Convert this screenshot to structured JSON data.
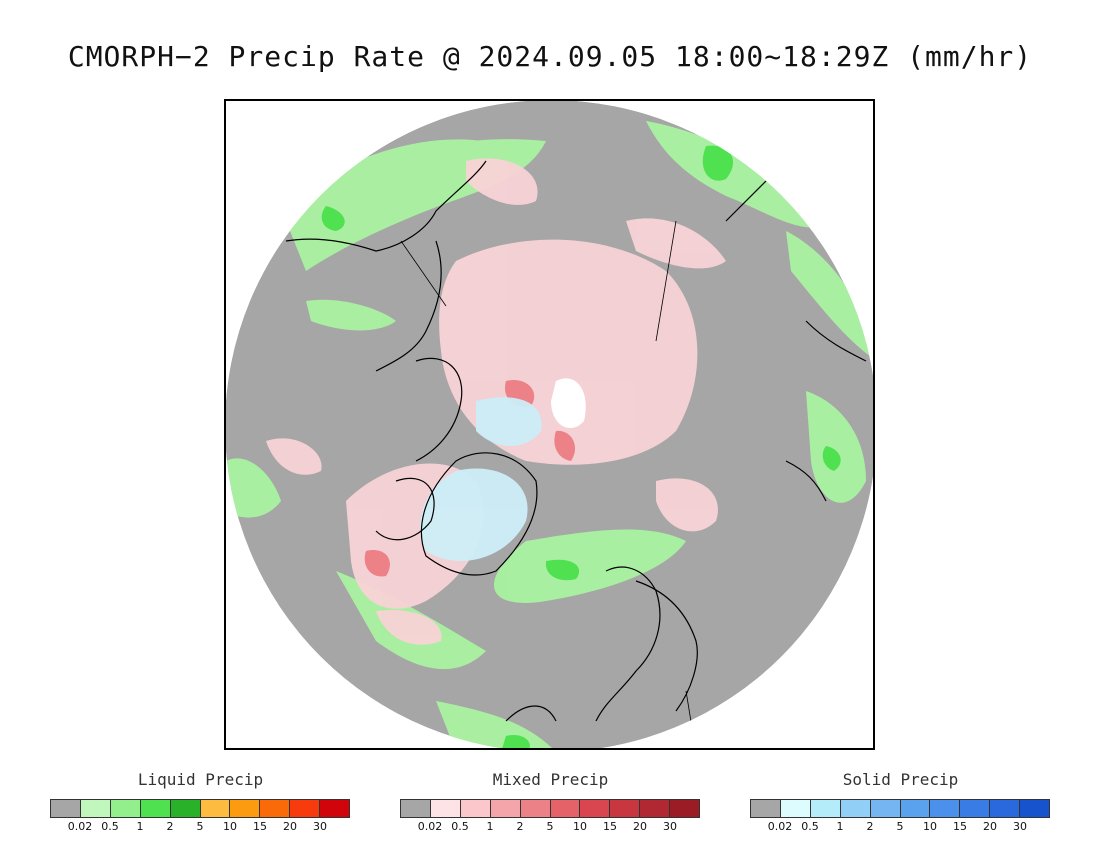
{
  "title": "CMORPH−2 Precip Rate @ 2024.09.05 18:00~18:29Z (mm/hr)",
  "map": {
    "projection": "north-polar-stereographic",
    "background_no_precip_color": "#a6a6a6",
    "outside_color": "#ffffff",
    "coastline_color": "#000000"
  },
  "legends": [
    {
      "title": "Liquid Precip",
      "colors": [
        "#a6a6a6",
        "#c1f7bd",
        "#93ee8c",
        "#4fe150",
        "#2ab12a",
        "#fdbb40",
        "#fc9a10",
        "#fb6a08",
        "#f83b0c",
        "#d2040b"
      ],
      "ticks": [
        "0.02",
        "0.5",
        "1",
        "2",
        "5",
        "10",
        "15",
        "20",
        "30"
      ]
    },
    {
      "title": "Mixed Precip",
      "colors": [
        "#a6a6a6",
        "#fde3e5",
        "#fbc7cb",
        "#f4a5aa",
        "#ec8187",
        "#e56268",
        "#d9464f",
        "#c8363f",
        "#b22832",
        "#9c1c26"
      ],
      "ticks": [
        "0.02",
        "0.5",
        "1",
        "2",
        "5",
        "10",
        "15",
        "20",
        "30"
      ]
    },
    {
      "title": "Solid Precip",
      "colors": [
        "#a6a6a6",
        "#dcfcfd",
        "#b4ecf9",
        "#92cff6",
        "#74b5f2",
        "#5aa2ee",
        "#4b90ea",
        "#3a7ce6",
        "#2a68de",
        "#1753cc"
      ],
      "ticks": [
        "0.02",
        "0.5",
        "1",
        "2",
        "5",
        "10",
        "15",
        "20",
        "30"
      ]
    }
  ]
}
